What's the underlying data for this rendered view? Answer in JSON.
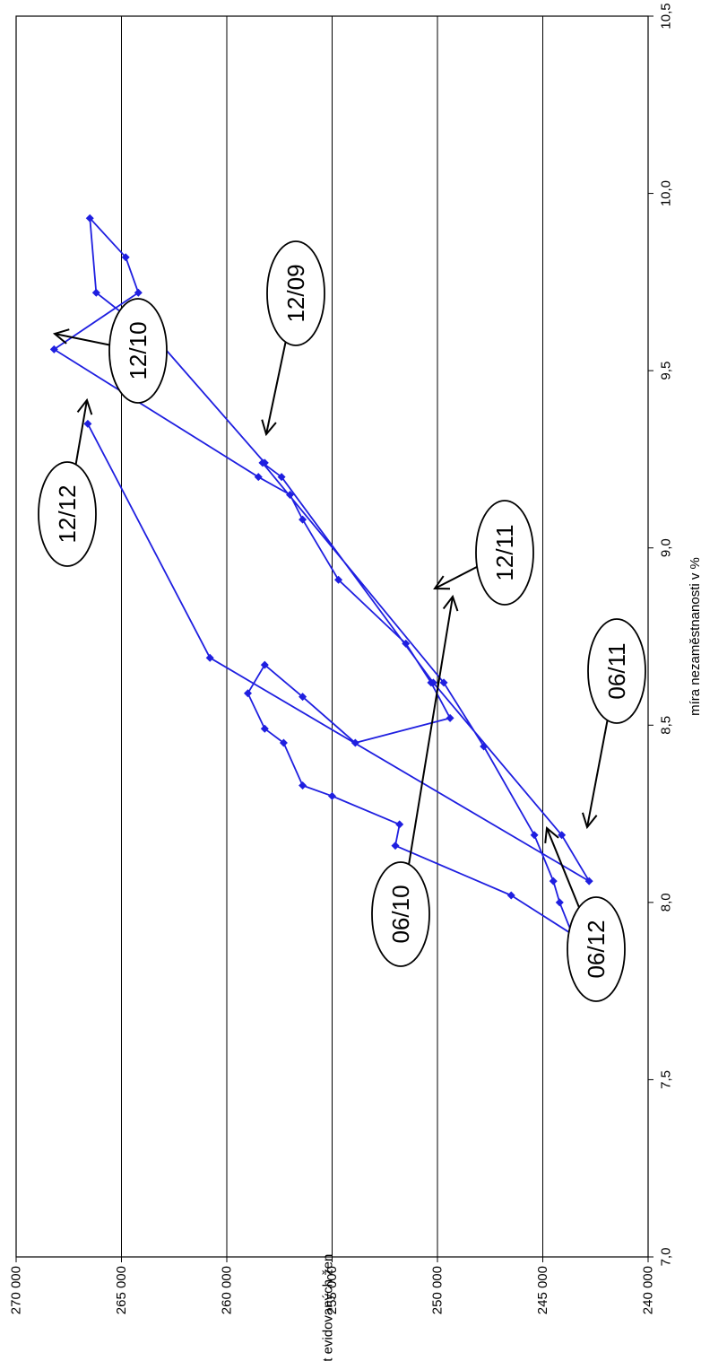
{
  "chart_data": {
    "type": "scatter",
    "title": "",
    "orientation": "rotated-90-clockwise",
    "xlabel": "míra nezaměstnanosti  v %",
    "ylabel": "počet evidovaných žen",
    "xlim": [
      7.0,
      10.5
    ],
    "ylim": [
      240000,
      270000
    ],
    "x_ticks": [
      7.0,
      7.5,
      8.0,
      8.5,
      9.0,
      9.5,
      10.0,
      10.5
    ],
    "x_tick_labels": [
      "7,0",
      "7,5",
      "8,0",
      "8,5",
      "9,0",
      "9,5",
      "10,0",
      "10,5"
    ],
    "y_ticks": [
      240000,
      245000,
      250000,
      255000,
      260000,
      265000,
      270000
    ],
    "y_tick_labels": [
      "240 000",
      "245 000",
      "250 000",
      "255 000",
      "260 000",
      "265 000",
      "270 000"
    ],
    "grid": "horizontal lines at y ticks",
    "series_color": "#1f1fe0",
    "series": [
      {
        "name": "",
        "x": [
          9.24,
          9.58,
          9.72,
          9.93,
          9.82,
          9.72,
          9.56,
          9.2,
          9.15,
          9.08,
          8.91,
          8.73,
          8.62,
          8.52,
          8.45,
          8.58,
          8.67,
          8.59,
          8.49,
          8.45,
          8.33,
          8.3,
          8.22,
          8.16,
          8.02,
          7.91,
          8.0,
          8.06,
          8.19,
          8.44,
          8.62,
          9.24,
          9.2,
          8.62,
          8.19,
          8.06,
          8.69,
          9.35
        ],
        "y": [
          258200,
          263200,
          266200,
          266500,
          264800,
          264200,
          268200,
          258500,
          257000,
          256400,
          254700,
          251500,
          250300,
          249400,
          253900,
          256400,
          258200,
          259000,
          258200,
          257300,
          256400,
          255000,
          251800,
          252000,
          246500,
          243600,
          244200,
          244500,
          245400,
          247800,
          249700,
          258300,
          257400,
          250200,
          244100,
          242800,
          260800,
          266600
        ]
      }
    ],
    "annotations": [
      {
        "label": "12/09"
      },
      {
        "label": "12/10"
      },
      {
        "label": "12/11"
      },
      {
        "label": "12/12"
      },
      {
        "label": "06/10"
      },
      {
        "label": "06/11"
      },
      {
        "label": "06/12"
      }
    ]
  }
}
